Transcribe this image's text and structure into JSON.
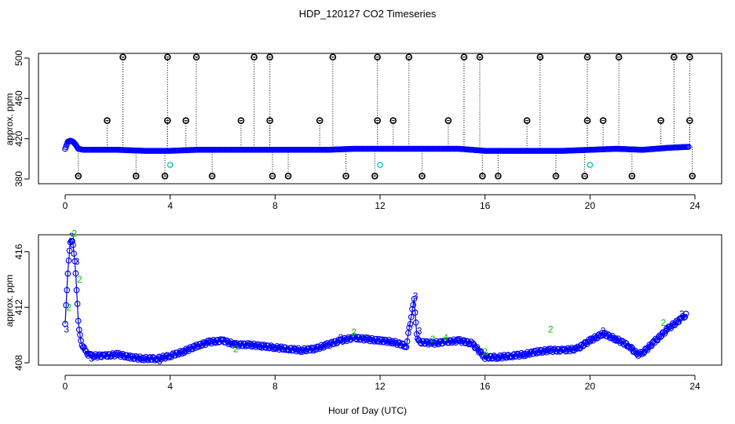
{
  "title": "HDP_120127  CO2 Timeseries",
  "xlabel": "Hour of Day (UTC)",
  "colors": {
    "baseline": "#0000ff",
    "outlier": "#000000",
    "flag": "#00c8c8",
    "label2": "#00c000",
    "label3": "#0000cc"
  },
  "chart_data": [
    {
      "type": "scatter",
      "ylabel": "approx. ppm",
      "xlim": [
        0,
        24
      ],
      "ylim": [
        380,
        500
      ],
      "xticks": [
        "0",
        "4",
        "8",
        "12",
        "16",
        "20",
        "24"
      ],
      "yticks": [
        "380",
        "420",
        "460",
        "500"
      ],
      "baseline": {
        "x": [
          0,
          0.1,
          0.2,
          0.3,
          0.4,
          0.5,
          0.7,
          1,
          2,
          3,
          4,
          5,
          6,
          7,
          8,
          9,
          10,
          11,
          12,
          13,
          14,
          15,
          16,
          17,
          18,
          19,
          20,
          21,
          22,
          23,
          23.8
        ],
        "y": [
          410,
          417,
          418,
          417,
          414,
          410,
          409,
          409,
          409,
          408,
          408,
          409,
          409,
          409,
          409,
          409,
          409,
          410,
          410,
          410,
          410,
          410,
          408,
          408,
          408,
          408,
          409,
          410,
          409,
          411,
          412
        ]
      },
      "outliers_high": {
        "x": [
          2.2,
          3.9,
          5.0,
          7.2,
          7.8,
          10.2,
          11.9,
          13.1,
          15.2,
          15.8,
          18.1,
          19.9,
          21.1,
          23.2,
          23.8
        ],
        "y": [
          501,
          501,
          501,
          501,
          501,
          501,
          501,
          501,
          501,
          501,
          501,
          501,
          501,
          501,
          501
        ]
      },
      "outliers_mid": {
        "x": [
          1.6,
          3.9,
          4.6,
          6.7,
          7.8,
          9.7,
          11.9,
          12.5,
          14.6,
          17.6,
          19.9,
          20.5,
          22.7,
          23.8
        ],
        "y": [
          438,
          438,
          438,
          438,
          438,
          438,
          438,
          438,
          438,
          438,
          438,
          438,
          438,
          438
        ]
      },
      "outliers_low": {
        "x": [
          0.5,
          2.7,
          3.8,
          5.6,
          7.9,
          8.5,
          10.7,
          11.8,
          13.6,
          15.9,
          16.5,
          18.7,
          19.8,
          21.6,
          23.9
        ],
        "y": [
          383,
          383,
          383,
          383,
          383,
          383,
          383,
          383,
          383,
          383,
          383,
          383,
          383,
          383,
          383
        ]
      },
      "flagged": {
        "x": [
          4.0,
          12.0,
          20.0
        ],
        "y": [
          394,
          394,
          394
        ]
      }
    },
    {
      "type": "line",
      "ylabel": "approx. ppm",
      "xlim": [
        0,
        24
      ],
      "ylim": [
        408,
        417
      ],
      "xticks": [
        "0",
        "4",
        "8",
        "12",
        "16",
        "20",
        "24"
      ],
      "yticks": [
        "408",
        "412",
        "416"
      ],
      "series": [
        {
          "name": "CO2",
          "x": [
            0.0,
            0.1,
            0.2,
            0.3,
            0.4,
            0.5,
            0.6,
            0.8,
            1.0,
            1.5,
            2.0,
            2.5,
            3.0,
            3.5,
            4.0,
            4.5,
            5.0,
            5.5,
            6.0,
            6.5,
            7.0,
            7.5,
            8.0,
            8.5,
            9.0,
            9.5,
            10.0,
            10.5,
            11.0,
            11.5,
            12.0,
            12.5,
            13.0,
            13.3,
            13.4,
            13.5,
            14.0,
            14.5,
            15.0,
            15.5,
            16.0,
            16.5,
            17.0,
            17.5,
            18.0,
            18.5,
            19.0,
            19.5,
            20.0,
            20.5,
            21.0,
            21.5,
            21.8,
            22.0,
            22.5,
            23.0,
            23.5,
            23.7
          ],
          "y": [
            410.8,
            414.5,
            416.8,
            416.6,
            414.5,
            411.0,
            409.5,
            408.7,
            408.5,
            408.5,
            408.6,
            408.4,
            408.3,
            408.3,
            408.5,
            408.8,
            409.2,
            409.5,
            409.6,
            409.3,
            409.3,
            409.2,
            409.1,
            409.0,
            408.9,
            409.0,
            409.3,
            409.6,
            409.8,
            409.7,
            409.6,
            409.5,
            409.2,
            412.6,
            410.0,
            409.5,
            409.4,
            409.5,
            409.6,
            409.4,
            408.4,
            408.4,
            408.5,
            408.6,
            408.8,
            408.9,
            408.9,
            409.0,
            409.6,
            410.1,
            409.7,
            409.2,
            408.6,
            408.7,
            409.6,
            410.5,
            411.2,
            411.5
          ]
        }
      ],
      "labels": [
        {
          "text": "3",
          "x": 0.05,
          "y": 410.4
        },
        {
          "text": "2",
          "x": 0.15,
          "y": 412.0
        },
        {
          "text": "3",
          "x": 0.25,
          "y": 417.1
        },
        {
          "text": "2",
          "x": 0.35,
          "y": 417.3
        },
        {
          "text": "3",
          "x": 0.45,
          "y": 415.3
        },
        {
          "text": "2",
          "x": 0.55,
          "y": 414.0
        },
        {
          "text": "3",
          "x": 1.0,
          "y": 408.3
        },
        {
          "text": "3",
          "x": 3.6,
          "y": 408.1
        },
        {
          "text": "2",
          "x": 6.5,
          "y": 409.0
        },
        {
          "text": "3",
          "x": 10.5,
          "y": 409.8
        },
        {
          "text": "2",
          "x": 11.0,
          "y": 410.2
        },
        {
          "text": "3",
          "x": 13.35,
          "y": 412.8
        },
        {
          "text": "3",
          "x": 13.5,
          "y": 410.3
        },
        {
          "text": "2",
          "x": 14.0,
          "y": 409.7
        },
        {
          "text": "4",
          "x": 14.5,
          "y": 409.8
        },
        {
          "text": "2",
          "x": 16.0,
          "y": 408.8
        },
        {
          "text": "2",
          "x": 18.5,
          "y": 410.4
        },
        {
          "text": "3",
          "x": 20.5,
          "y": 410.3
        },
        {
          "text": "2",
          "x": 22.8,
          "y": 410.9
        },
        {
          "text": "3",
          "x": 23.5,
          "y": 411.5
        }
      ]
    }
  ]
}
